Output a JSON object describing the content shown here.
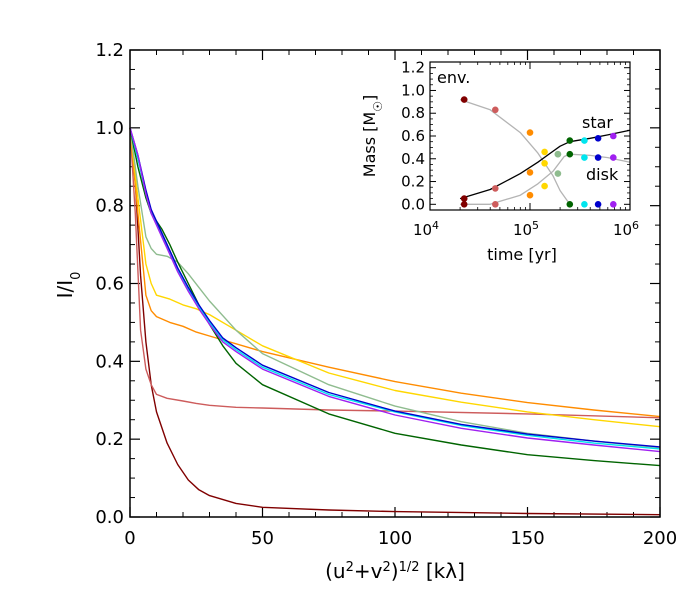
{
  "chart_data": [
    {
      "type": "line",
      "xlabel": "(u²+v²)¹ᐟ² [kλ]",
      "ylabel": "I/I₀",
      "xlim": [
        0,
        200
      ],
      "ylim": [
        0,
        1.2
      ],
      "xticks": [
        "0",
        "50",
        "100",
        "150",
        "200"
      ],
      "yticks": [
        "0.0",
        "0.2",
        "0.4",
        "0.6",
        "0.8",
        "1.0",
        "1.2"
      ],
      "grid": false,
      "series": [
        {
          "color": "#800000",
          "x": [
            0,
            2,
            4,
            6,
            8,
            10,
            14,
            18,
            22,
            26,
            30,
            40,
            50,
            75,
            100,
            150,
            200
          ],
          "y": [
            1.0,
            0.86,
            0.62,
            0.45,
            0.34,
            0.27,
            0.19,
            0.135,
            0.095,
            0.07,
            0.055,
            0.035,
            0.025,
            0.018,
            0.014,
            0.009,
            0.006
          ]
        },
        {
          "color": "#cd5c5c",
          "x": [
            0,
            2,
            4,
            6,
            8,
            10,
            14,
            20,
            25,
            30,
            40,
            50,
            75,
            100,
            150,
            200
          ],
          "y": [
            1.0,
            0.78,
            0.48,
            0.38,
            0.34,
            0.315,
            0.305,
            0.298,
            0.292,
            0.287,
            0.282,
            0.28,
            0.275,
            0.272,
            0.265,
            0.255
          ]
        },
        {
          "color": "#ff8c00",
          "x": [
            0,
            3,
            6,
            8,
            10,
            15,
            20,
            25,
            30,
            50,
            75,
            100,
            125,
            150,
            175,
            200
          ],
          "y": [
            1.0,
            0.78,
            0.57,
            0.53,
            0.515,
            0.5,
            0.49,
            0.475,
            0.465,
            0.425,
            0.385,
            0.348,
            0.318,
            0.294,
            0.275,
            0.258
          ]
        },
        {
          "color": "#ffd700",
          "x": [
            0,
            3,
            6,
            8,
            10,
            15,
            20,
            25,
            30,
            40,
            50,
            75,
            100,
            125,
            150,
            175,
            200
          ],
          "y": [
            1.0,
            0.82,
            0.65,
            0.6,
            0.57,
            0.56,
            0.545,
            0.535,
            0.52,
            0.48,
            0.44,
            0.37,
            0.325,
            0.295,
            0.27,
            0.25,
            0.232
          ]
        },
        {
          "color": "#8fbc8f",
          "x": [
            0,
            3,
            6,
            8,
            10,
            14,
            18,
            22,
            26,
            30,
            40,
            50,
            75,
            100,
            125,
            150,
            175,
            200
          ],
          "y": [
            1.0,
            0.85,
            0.72,
            0.69,
            0.675,
            0.67,
            0.655,
            0.625,
            0.59,
            0.555,
            0.48,
            0.42,
            0.34,
            0.285,
            0.245,
            0.215,
            0.195,
            0.178
          ]
        },
        {
          "color": "#006400",
          "x": [
            0,
            3,
            6,
            8,
            10,
            12,
            15,
            18,
            22,
            26,
            30,
            35,
            40,
            50,
            75,
            100,
            125,
            150,
            175,
            200
          ],
          "y": [
            1.0,
            0.9,
            0.82,
            0.78,
            0.76,
            0.74,
            0.7,
            0.655,
            0.6,
            0.545,
            0.495,
            0.44,
            0.395,
            0.34,
            0.265,
            0.215,
            0.185,
            0.16,
            0.145,
            0.132
          ]
        },
        {
          "color": "#00e5ee",
          "x": [
            0,
            3,
            6,
            8,
            10,
            12,
            15,
            18,
            22,
            26,
            30,
            35,
            40,
            50,
            75,
            100,
            125,
            150,
            175,
            200
          ],
          "y": [
            1.0,
            0.92,
            0.83,
            0.78,
            0.755,
            0.725,
            0.68,
            0.635,
            0.585,
            0.54,
            0.5,
            0.455,
            0.43,
            0.385,
            0.315,
            0.27,
            0.235,
            0.21,
            0.19,
            0.175
          ]
        },
        {
          "color": "#0000cd",
          "x": [
            0,
            3,
            6,
            8,
            10,
            12,
            15,
            18,
            22,
            26,
            30,
            35,
            40,
            50,
            75,
            100,
            125,
            150,
            175,
            200
          ],
          "y": [
            1.0,
            0.93,
            0.84,
            0.79,
            0.76,
            0.73,
            0.685,
            0.64,
            0.59,
            0.545,
            0.505,
            0.46,
            0.435,
            0.39,
            0.32,
            0.272,
            0.238,
            0.213,
            0.195,
            0.18
          ]
        },
        {
          "color": "#a020f0",
          "x": [
            0,
            3,
            6,
            8,
            10,
            12,
            15,
            18,
            22,
            26,
            30,
            35,
            40,
            50,
            75,
            100,
            125,
            150,
            175,
            200
          ],
          "y": [
            1.0,
            0.93,
            0.83,
            0.78,
            0.75,
            0.72,
            0.675,
            0.63,
            0.58,
            0.535,
            0.495,
            0.45,
            0.425,
            0.38,
            0.31,
            0.262,
            0.228,
            0.203,
            0.185,
            0.168
          ]
        }
      ]
    },
    {
      "type": "line",
      "xlabel": "time [yr]",
      "ylabel": "Mass [M☉]",
      "xscale": "log",
      "xlim": [
        10000,
        1000000
      ],
      "ylim": [
        -0.05,
        1.25
      ],
      "xticks": [
        {
          "value": 10000,
          "base": "10",
          "exp": "4"
        },
        {
          "value": 100000,
          "base": "10",
          "exp": "5"
        },
        {
          "value": 1000000,
          "base": "10",
          "exp": "6"
        }
      ],
      "yticks": [
        "0.0",
        "0.2",
        "0.4",
        "0.6",
        "0.8",
        "1.0",
        "1.2"
      ],
      "annotations": [
        "env.",
        "star",
        "disk"
      ],
      "series": [
        {
          "label": "env.",
          "color": "#b4b4b4",
          "x": [
            20000,
            40000,
            80000,
            120000,
            170000,
            200000,
            250000
          ],
          "y": [
            0.92,
            0.83,
            0.63,
            0.45,
            0.25,
            0.12,
            0.0
          ]
        },
        {
          "label": "star",
          "color": "#000000",
          "x": [
            20000,
            40000,
            80000,
            120000,
            160000,
            200000,
            250000,
            400000,
            600000,
            1000000
          ],
          "y": [
            0.05,
            0.13,
            0.27,
            0.37,
            0.45,
            0.51,
            0.55,
            0.58,
            0.61,
            0.65
          ]
        },
        {
          "label": "disk",
          "color": "#b4b4b4",
          "x": [
            20000,
            40000,
            80000,
            120000,
            170000,
            220000,
            250000,
            400000,
            600000,
            1000000
          ],
          "y": [
            0.0,
            0.0,
            0.08,
            0.18,
            0.29,
            0.42,
            0.44,
            0.43,
            0.41,
            0.37
          ]
        }
      ],
      "markers": [
        {
          "color": "#800000",
          "x": 22000,
          "y": [
            0.92,
            0.05,
            0.0
          ]
        },
        {
          "color": "#cd5c5c",
          "x": 45000,
          "y": [
            0.83,
            0.14,
            0.0
          ]
        },
        {
          "color": "#ff8c00",
          "x": 100000,
          "y": [
            0.63,
            0.28,
            0.08
          ]
        },
        {
          "color": "#ffd700",
          "x": 140000,
          "y": [
            0.46,
            0.36,
            0.16
          ]
        },
        {
          "color": "#8fbc8f",
          "x": 190000,
          "y": [
            0.44,
            0.44,
            0.27
          ]
        },
        {
          "color": "#006400",
          "x": 250000,
          "y": [
            0.56,
            0.44,
            0.0
          ]
        },
        {
          "color": "#00e5ee",
          "x": 350000,
          "y": [
            0.56,
            0.41,
            0.0
          ]
        },
        {
          "color": "#0000cd",
          "x": 480000,
          "y": [
            0.58,
            0.41,
            0.0
          ]
        },
        {
          "color": "#a020f0",
          "x": 680000,
          "y": [
            0.6,
            0.41,
            0.0
          ]
        }
      ]
    }
  ]
}
